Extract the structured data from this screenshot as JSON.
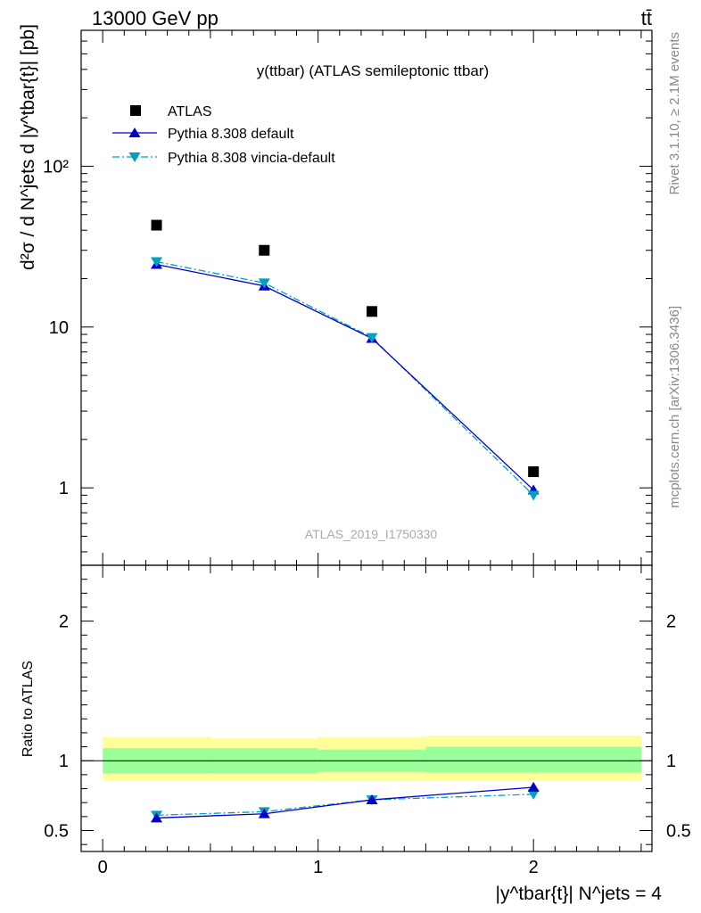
{
  "header": {
    "left": "13000 GeV pp",
    "right": "tt̄"
  },
  "side_text": {
    "rivet": "Rivet 3.1.10, ≥ 2.1M events",
    "mcplots": "mcplots.cern.ch [arXiv:1306.3436]"
  },
  "watermark": "ATLAS_2019_I1750330",
  "colors": {
    "atlas": "#000000",
    "pythia_default": "#0000cc",
    "pythia_vincia": "#00a0c0",
    "band_inner": "#99ff99",
    "band_outer": "#ffff99"
  },
  "chart_data": [
    {
      "type": "line",
      "title": "y(ttbar) (ATLAS semileptonic ttbar)",
      "ylabel": "d²σ / d N^jets d |y^tbar{t}| [pb]",
      "yscale": "log",
      "xlim": [
        -0.1,
        2.55
      ],
      "ylim": [
        0.33,
        700
      ],
      "yticks": [
        1,
        10,
        100
      ],
      "ytick_labels": [
        "1",
        "10",
        "10²"
      ],
      "legend": "top-left",
      "series": [
        {
          "name": "ATLAS",
          "marker": "square",
          "x": [
            0.25,
            0.75,
            1.25,
            2.0
          ],
          "y": [
            43.0,
            30.0,
            12.5,
            1.26
          ]
        },
        {
          "name": "Pythia 8.308 default",
          "marker": "triangle-up",
          "line": "solid",
          "x": [
            0.25,
            0.75,
            1.25,
            2.0
          ],
          "y": [
            24.5,
            18.0,
            8.5,
            0.97
          ]
        },
        {
          "name": "Pythia 8.308 vincia-default",
          "marker": "triangle-down",
          "line": "dashdot",
          "x": [
            0.25,
            0.75,
            1.25,
            2.0
          ],
          "y": [
            25.5,
            18.8,
            8.6,
            0.9
          ]
        }
      ]
    },
    {
      "type": "line",
      "ylabel": "Ratio to ATLAS",
      "xlabel": "|y^tbar{t}| N^jets = 4",
      "xlim": [
        -0.1,
        2.55
      ],
      "ylim": [
        0.35,
        2.4
      ],
      "yticks": [
        0.5,
        1,
        2
      ],
      "ytick_labels": [
        "0.5",
        "1",
        "2"
      ],
      "xticks": [
        0,
        1,
        2
      ],
      "xtick_labels": [
        "0",
        "1",
        "2"
      ],
      "reference_line": 1,
      "bands": [
        {
          "x0": 0.0,
          "x1": 0.5,
          "inner": [
            0.91,
            1.09
          ],
          "outer": [
            0.855,
            1.17
          ]
        },
        {
          "x0": 0.5,
          "x1": 1.0,
          "inner": [
            0.91,
            1.09
          ],
          "outer": [
            0.86,
            1.16
          ]
        },
        {
          "x0": 1.0,
          "x1": 1.5,
          "inner": [
            0.92,
            1.08
          ],
          "outer": [
            0.86,
            1.17
          ]
        },
        {
          "x0": 1.5,
          "x1": 2.5,
          "inner": [
            0.915,
            1.1
          ],
          "outer": [
            0.855,
            1.18
          ]
        }
      ],
      "series": [
        {
          "name": "Pythia 8.308 default",
          "x": [
            0.25,
            0.75,
            1.25,
            2.0
          ],
          "y": [
            0.59,
            0.62,
            0.72,
            0.81
          ]
        },
        {
          "name": "Pythia 8.308 vincia-default",
          "x": [
            0.25,
            0.75,
            1.25,
            2.0
          ],
          "y": [
            0.61,
            0.635,
            0.72,
            0.76
          ]
        }
      ]
    }
  ]
}
